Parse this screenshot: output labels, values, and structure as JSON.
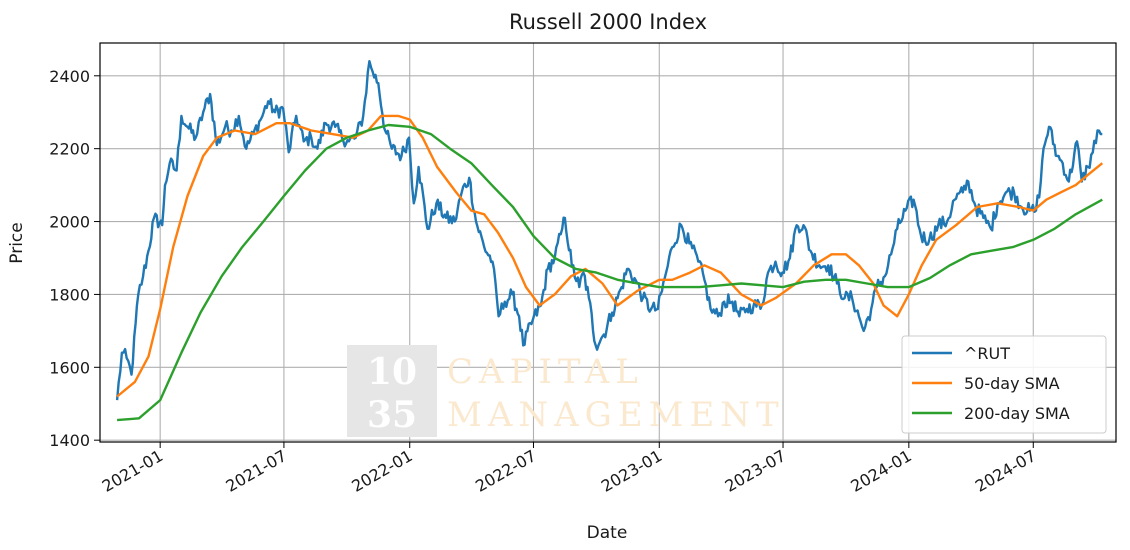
{
  "chart_data": {
    "type": "line",
    "title": "Russell 2000 Index",
    "xlabel": "Date",
    "ylabel": "Price",
    "x_range": [
      "2020-10-05",
      "2024-10-30"
    ],
    "ylim": [
      1395,
      2490
    ],
    "y_ticks": [
      1400,
      1600,
      1800,
      2000,
      2200,
      2400
    ],
    "x_ticks": [
      "2021-01",
      "2021-07",
      "2022-01",
      "2022-07",
      "2023-01",
      "2023-07",
      "2024-01",
      "2024-07"
    ],
    "grid": true,
    "legend_position": "bottom-right",
    "watermark": {
      "logo": [
        "10",
        "35"
      ],
      "text": [
        "CAPITAL",
        "MANAGEMENT"
      ]
    },
    "series": [
      {
        "name": "^RUT",
        "color": "#1f77b4",
        "x": [
          "2020-10-30",
          "2020-11-06",
          "2020-11-13",
          "2020-11-20",
          "2020-11-30",
          "2020-12-07",
          "2020-12-15",
          "2020-12-23",
          "2021-01-04",
          "2021-01-08",
          "2021-01-15",
          "2021-01-25",
          "2021-02-01",
          "2021-02-10",
          "2021-02-22",
          "2021-03-05",
          "2021-03-15",
          "2021-03-25",
          "2021-04-06",
          "2021-04-15",
          "2021-04-26",
          "2021-05-07",
          "2021-05-17",
          "2021-05-28",
          "2021-06-08",
          "2021-06-18",
          "2021-06-30",
          "2021-07-08",
          "2021-07-19",
          "2021-07-30",
          "2021-08-10",
          "2021-08-19",
          "2021-08-31",
          "2021-09-14",
          "2021-09-24",
          "2021-10-04",
          "2021-10-14",
          "2021-10-25",
          "2021-11-03",
          "2021-11-08",
          "2021-11-16",
          "2021-11-26",
          "2021-12-06",
          "2021-12-20",
          "2021-12-31",
          "2022-01-07",
          "2022-01-14",
          "2022-01-27",
          "2022-02-09",
          "2022-02-23",
          "2022-03-08",
          "2022-03-18",
          "2022-03-29",
          "2022-04-08",
          "2022-04-20",
          "2022-05-02",
          "2022-05-11",
          "2022-05-20",
          "2022-05-31",
          "2022-06-10",
          "2022-06-16",
          "2022-06-30",
          "2022-07-12",
          "2022-07-22",
          "2022-08-01",
          "2022-08-12",
          "2022-08-16",
          "2022-08-26",
          "2022-09-06",
          "2022-09-12",
          "2022-09-20",
          "2022-09-30",
          "2022-10-12",
          "2022-10-24",
          "2022-11-07",
          "2022-11-15",
          "2022-11-30",
          "2022-12-08",
          "2022-12-20",
          "2022-12-30",
          "2023-01-11",
          "2023-01-20",
          "2023-02-02",
          "2023-02-14",
          "2023-02-27",
          "2023-03-08",
          "2023-03-17",
          "2023-03-28",
          "2023-04-06",
          "2023-04-18",
          "2023-04-28",
          "2023-05-09",
          "2023-05-19",
          "2023-05-31",
          "2023-06-09",
          "2023-06-20",
          "2023-06-30",
          "2023-07-11",
          "2023-07-21",
          "2023-07-31",
          "2023-08-10",
          "2023-08-23",
          "2023-09-05",
          "2023-09-18",
          "2023-09-29",
          "2023-10-10",
          "2023-10-20",
          "2023-10-27",
          "2023-11-07",
          "2023-11-15",
          "2023-11-27",
          "2023-12-06",
          "2023-12-15",
          "2023-12-27",
          "2024-01-08",
          "2024-01-19",
          "2024-01-31",
          "2024-02-13",
          "2024-02-26",
          "2024-03-08",
          "2024-03-20",
          "2024-03-28",
          "2024-04-08",
          "2024-04-19",
          "2024-04-30",
          "2024-05-10",
          "2024-05-22",
          "2024-06-03",
          "2024-06-14",
          "2024-06-26",
          "2024-07-05",
          "2024-07-12",
          "2024-07-16",
          "2024-07-24",
          "2024-08-05",
          "2024-08-13",
          "2024-08-22",
          "2024-09-03",
          "2024-09-10",
          "2024-09-19",
          "2024-09-26",
          "2024-10-03",
          "2024-10-10"
        ],
        "values": [
          1510,
          1640,
          1625,
          1580,
          1800,
          1850,
          1920,
          2010,
          1990,
          2100,
          2160,
          2140,
          2290,
          2260,
          2230,
          2300,
          2350,
          2210,
          2260,
          2250,
          2290,
          2200,
          2240,
          2280,
          2330,
          2300,
          2310,
          2190,
          2290,
          2220,
          2230,
          2200,
          2270,
          2260,
          2230,
          2220,
          2230,
          2290,
          2440,
          2410,
          2380,
          2250,
          2200,
          2180,
          2230,
          2050,
          2150,
          1980,
          2050,
          2010,
          2000,
          2080,
          2120,
          2000,
          1930,
          1890,
          1740,
          1780,
          1800,
          1740,
          1660,
          1730,
          1770,
          1870,
          1900,
          1980,
          2010,
          1880,
          1820,
          1860,
          1790,
          1660,
          1690,
          1750,
          1820,
          1870,
          1830,
          1790,
          1760,
          1760,
          1860,
          1930,
          1990,
          1940,
          1890,
          1840,
          1760,
          1740,
          1780,
          1780,
          1740,
          1760,
          1770,
          1770,
          1860,
          1890,
          1860,
          1900,
          1990,
          1990,
          1920,
          1880,
          1880,
          1830,
          1790,
          1790,
          1740,
          1700,
          1760,
          1820,
          1850,
          1910,
          1980,
          2030,
          2060,
          1960,
          1950,
          1990,
          2000,
          2060,
          2080,
          2110,
          2040,
          2010,
          1980,
          2050,
          2080,
          2080,
          2040,
          2030,
          2030,
          2110,
          2200,
          2260,
          2180,
          2160,
          2110,
          2220,
          2110,
          2150,
          2190,
          2250,
          2240
        ]
      },
      {
        "name": "50-day SMA",
        "color": "#ff7f0e",
        "x": [
          "2020-10-30",
          "2020-11-25",
          "2020-12-15",
          "2021-01-01",
          "2021-01-20",
          "2021-02-10",
          "2021-03-05",
          "2021-03-25",
          "2021-04-20",
          "2021-05-20",
          "2021-06-20",
          "2021-07-10",
          "2021-08-10",
          "2021-09-10",
          "2021-10-10",
          "2021-11-01",
          "2021-11-20",
          "2021-12-15",
          "2022-01-01",
          "2022-01-20",
          "2022-02-10",
          "2022-03-10",
          "2022-04-01",
          "2022-04-20",
          "2022-05-10",
          "2022-06-01",
          "2022-06-20",
          "2022-07-10",
          "2022-08-01",
          "2022-08-25",
          "2022-09-15",
          "2022-10-10",
          "2022-11-01",
          "2022-11-30",
          "2023-01-01",
          "2023-01-20",
          "2023-02-15",
          "2023-03-08",
          "2023-04-01",
          "2023-05-01",
          "2023-05-30",
          "2023-06-20",
          "2023-07-20",
          "2023-08-15",
          "2023-09-10",
          "2023-10-01",
          "2023-10-20",
          "2023-11-10",
          "2023-11-25",
          "2023-12-15",
          "2024-01-01",
          "2024-01-20",
          "2024-02-10",
          "2024-03-10",
          "2024-04-10",
          "2024-05-10",
          "2024-06-10",
          "2024-07-01",
          "2024-07-20",
          "2024-08-10",
          "2024-09-01",
          "2024-09-20",
          "2024-10-10"
        ],
        "values": [
          1520,
          1560,
          1630,
          1760,
          1930,
          2070,
          2180,
          2230,
          2250,
          2240,
          2270,
          2270,
          2250,
          2240,
          2230,
          2250,
          2290,
          2290,
          2280,
          2230,
          2150,
          2080,
          2030,
          2020,
          1970,
          1900,
          1820,
          1770,
          1800,
          1850,
          1870,
          1830,
          1770,
          1810,
          1840,
          1840,
          1860,
          1880,
          1860,
          1800,
          1770,
          1790,
          1830,
          1880,
          1910,
          1910,
          1880,
          1830,
          1770,
          1740,
          1800,
          1880,
          1950,
          1990,
          2040,
          2050,
          2040,
          2030,
          2060,
          2080,
          2100,
          2130,
          2160
        ]
      },
      {
        "name": "200-day SMA",
        "color": "#2ca02c",
        "x": [
          "2020-10-30",
          "2020-12-01",
          "2021-01-01",
          "2021-02-01",
          "2021-03-01",
          "2021-04-01",
          "2021-05-01",
          "2021-06-01",
          "2021-07-01",
          "2021-08-01",
          "2021-09-01",
          "2021-10-01",
          "2021-11-01",
          "2021-12-01",
          "2022-01-01",
          "2022-02-01",
          "2022-03-01",
          "2022-04-01",
          "2022-05-01",
          "2022-06-01",
          "2022-07-01",
          "2022-08-01",
          "2022-09-01",
          "2022-10-01",
          "2022-11-01",
          "2022-12-01",
          "2023-01-01",
          "2023-02-01",
          "2023-03-01",
          "2023-04-01",
          "2023-05-01",
          "2023-06-01",
          "2023-07-01",
          "2023-08-01",
          "2023-09-01",
          "2023-10-01",
          "2023-11-01",
          "2023-12-01",
          "2024-01-01",
          "2024-02-01",
          "2024-03-01",
          "2024-04-01",
          "2024-05-01",
          "2024-06-01",
          "2024-07-01",
          "2024-08-01",
          "2024-09-01",
          "2024-10-10"
        ],
        "values": [
          1455,
          1460,
          1510,
          1640,
          1750,
          1850,
          1930,
          2000,
          2070,
          2140,
          2200,
          2230,
          2250,
          2265,
          2260,
          2240,
          2200,
          2160,
          2100,
          2040,
          1960,
          1900,
          1870,
          1860,
          1840,
          1830,
          1820,
          1820,
          1820,
          1825,
          1830,
          1825,
          1820,
          1835,
          1840,
          1840,
          1830,
          1820,
          1820,
          1845,
          1880,
          1910,
          1920,
          1930,
          1950,
          1980,
          2020,
          2060
        ]
      }
    ]
  }
}
